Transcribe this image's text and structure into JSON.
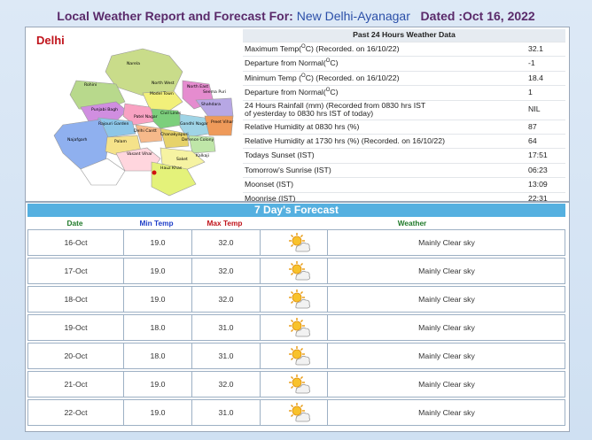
{
  "header": {
    "prefix": "Local Weather Report and Forecast For: ",
    "place": "New Delhi-Ayanagar",
    "dated": "Dated :Oct 16, 2022"
  },
  "map": {
    "label": "Delhi",
    "districts": [
      "Narela",
      "Rohini",
      "North West",
      "Model Town",
      "North East",
      "Shahdara",
      "Punjabi Bagh",
      "Patel Nagar",
      "Rajouri Garden",
      "Civil Lines",
      "Delhi Cantt",
      "Najafgarh",
      "Palam",
      "Vasant Vihar",
      "Saket",
      "Kalkaji",
      "Hauz Khas",
      "Preet Vihar",
      "Gandhi Nagar",
      "Defence Colony",
      "Chanakyapuri",
      "Seema Puri"
    ]
  },
  "past24": {
    "heading": "Past 24 Hours Weather Data",
    "rows": [
      {
        "label": "Maximum Temp(",
        "sup": "O",
        "tail": "C) (Recorded. on 16/10/22)",
        "value": "32.1"
      },
      {
        "label": "Departure from Normal(",
        "sup": "O",
        "tail": "C)",
        "value": "-1"
      },
      {
        "label": "Minimum Temp (",
        "sup": "O",
        "tail": "C) (Recorded. on 16/10/22)",
        "value": "18.4"
      },
      {
        "label": "Departure from Normal(",
        "sup": "O",
        "tail": "C)",
        "value": "1"
      },
      {
        "label": "24 Hours Rainfall (mm) (Recorded from 0830 hrs IST",
        "line2": "of yesterday to 0830 hrs IST of today)",
        "value": "NIL",
        "tall": true
      },
      {
        "label": "Relative Humidity at 0830 hrs (%)",
        "value": "87"
      },
      {
        "label": "Relative Humidity at 1730 hrs (%) (Recorded. on 16/10/22)",
        "value": "64"
      },
      {
        "label": "Todays Sunset (IST)",
        "value": "17:51"
      },
      {
        "label": "Tomorrow's Sunrise (IST)",
        "value": "06:23"
      },
      {
        "label": "Moonset (IST)",
        "value": "13:09"
      },
      {
        "label": "Moonrise (IST)",
        "value": "22:31"
      }
    ]
  },
  "forecast": {
    "title": "7 Day's Forecast",
    "columns": {
      "date": "Date",
      "min": "Min Temp",
      "max": "Max Temp",
      "weather": "Weather"
    },
    "colors": {
      "date": "#1f7a2a",
      "min": "#1f3fc8",
      "max": "#c0141c",
      "weather": "#1f7a2a"
    },
    "icon": "sun-with-clouds-icon",
    "rows": [
      {
        "date": "16-Oct",
        "min": "19.0",
        "max": "32.0",
        "weather": "Mainly Clear sky"
      },
      {
        "date": "17-Oct",
        "min": "19.0",
        "max": "32.0",
        "weather": "Mainly Clear sky"
      },
      {
        "date": "18-Oct",
        "min": "19.0",
        "max": "32.0",
        "weather": "Mainly Clear sky"
      },
      {
        "date": "19-Oct",
        "min": "18.0",
        "max": "31.0",
        "weather": "Mainly Clear sky"
      },
      {
        "date": "20-Oct",
        "min": "18.0",
        "max": "31.0",
        "weather": "Mainly Clear sky"
      },
      {
        "date": "21-Oct",
        "min": "19.0",
        "max": "32.0",
        "weather": "Mainly Clear sky"
      },
      {
        "date": "22-Oct",
        "min": "19.0",
        "max": "31.0",
        "weather": "Mainly Clear sky"
      }
    ]
  }
}
